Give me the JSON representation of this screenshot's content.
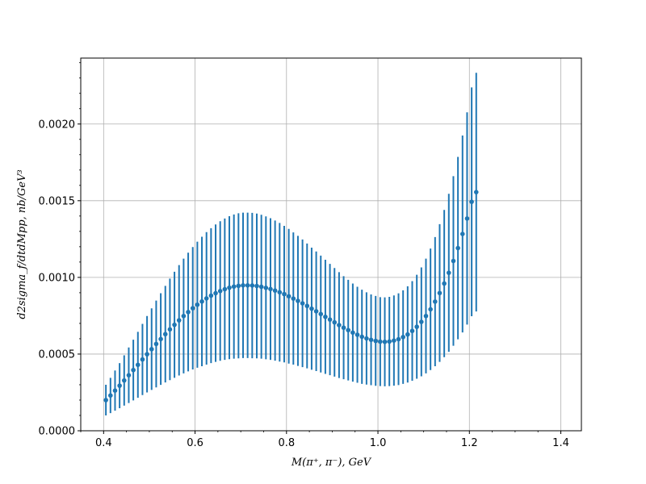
{
  "chart_data": {
    "type": "scatter",
    "title": "",
    "xlabel": "M(π⁺, π⁻), GeV",
    "ylabel": "d2sigma_f/dtdMpp, nb/GeV³",
    "xlim": [
      0.35,
      1.445
    ],
    "ylim": [
      0.0,
      0.00243
    ],
    "xticks": [
      0.4,
      0.6,
      0.8,
      1.0,
      1.2,
      1.4
    ],
    "xtick_labels": [
      "0.4",
      "0.6",
      "0.8",
      "1.0",
      "1.2",
      "1.4"
    ],
    "yticks": [
      0.0,
      0.0005,
      0.001,
      0.0015,
      0.002
    ],
    "ytick_labels": [
      "0.0000",
      "0.0005",
      "0.0010",
      "0.0015",
      "0.0020"
    ],
    "grid": true,
    "color": "#1f77b4",
    "series": [
      {
        "x_start": 0.405,
        "x_step": 0.01,
        "y": [
          0.0002,
          0.00023,
          0.000262,
          0.000294,
          0.000328,
          0.000362,
          0.000396,
          0.00043,
          0.000465,
          0.000499,
          0.000532,
          0.000566,
          0.000598,
          0.00063,
          0.000661,
          0.000691,
          0.00072,
          0.000748,
          0.000774,
          0.000799,
          0.000822,
          0.000843,
          0.000863,
          0.000881,
          0.000897,
          0.000911,
          0.000923,
          0.000933,
          0.00094,
          0.000945,
          0.000948,
          0.000948,
          0.000947,
          0.000944,
          0.000939,
          0.000932,
          0.000924,
          0.000914,
          0.000903,
          0.000891,
          0.000877,
          0.000862,
          0.000847,
          0.000831,
          0.000814,
          0.000796,
          0.000779,
          0.000761,
          0.000743,
          0.000725,
          0.000707,
          0.000689,
          0.000672,
          0.000656,
          0.00064,
          0.000626,
          0.000613,
          0.000602,
          0.000593,
          0.000586,
          0.000581,
          0.00058,
          0.000582,
          0.000588,
          0.000597,
          0.000611,
          0.000628,
          0.000651,
          0.000678,
          0.00071,
          0.000748,
          0.000792,
          0.000842,
          0.000898,
          0.00096,
          0.00103,
          0.001107,
          0.001191,
          0.001283,
          0.001384,
          0.001493,
          0.001556
        ],
        "err": [
          0.0001,
          0.000115,
          0.000131,
          0.000147,
          0.000164,
          0.000181,
          0.000198,
          0.000215,
          0.000232,
          0.000249,
          0.000266,
          0.000283,
          0.000299,
          0.000315,
          0.000331,
          0.000346,
          0.00036,
          0.000374,
          0.000387,
          0.000399,
          0.000411,
          0.000422,
          0.000432,
          0.00044,
          0.000448,
          0.000455,
          0.000461,
          0.000466,
          0.00047,
          0.000473,
          0.000474,
          0.000474,
          0.000474,
          0.000472,
          0.000469,
          0.000466,
          0.000462,
          0.000457,
          0.000452,
          0.000445,
          0.000439,
          0.000431,
          0.000424,
          0.000416,
          0.000407,
          0.000398,
          0.00039,
          0.000381,
          0.000372,
          0.000363,
          0.000354,
          0.000345,
          0.000336,
          0.000328,
          0.00032,
          0.000313,
          0.000307,
          0.000301,
          0.000296,
          0.000293,
          0.00029,
          0.00029,
          0.000291,
          0.000294,
          0.000299,
          0.000305,
          0.000314,
          0.000325,
          0.000339,
          0.000355,
          0.000374,
          0.000396,
          0.000421,
          0.000449,
          0.00048,
          0.000515,
          0.000553,
          0.000595,
          0.000642,
          0.000692,
          0.000746,
          0.000778
        ]
      }
    ]
  }
}
